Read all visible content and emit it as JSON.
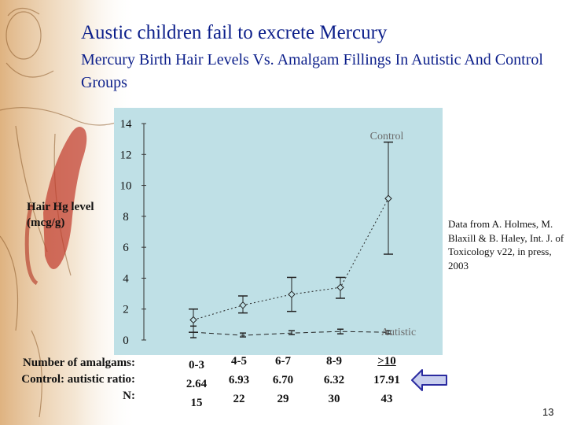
{
  "title": "Austic children fail to excrete Mercury",
  "subtitle": "Mercury Birth Hair Levels Vs. Amalgam Fillings In Autistic And Control Groups",
  "source_note": "Data from A. Holmes, M. Blaxill & B. Haley, Int. J. of Toxicology v22, in press, 2003",
  "page_number": "13",
  "row_labels": [
    "Number of amalgams:",
    "Control: autistic ratio:",
    "N:"
  ],
  "columns": [
    {
      "amalgams": "0-3",
      "ratio": "2.64",
      "n": "15"
    },
    {
      "amalgams": "4-5",
      "ratio": "6.93",
      "n": "22"
    },
    {
      "amalgams": "6-7",
      "ratio": "6.70",
      "n": "29"
    },
    {
      "amalgams": "8-9",
      "ratio": "6.32",
      "n": "30"
    },
    {
      "amalgams": ">10",
      "ratio": "17.91",
      "n": "43"
    }
  ],
  "colors": {
    "title": "#0b1e8a",
    "plot_bg": "#bfe0e6",
    "series_label": "#6b6b6b",
    "arrow_fill": "#c9cfee",
    "arrow_stroke": "#2b2ba0"
  },
  "chart_data": {
    "type": "line",
    "ylabel": "Hair Hg level (mcg/g)",
    "xlabel": "",
    "ylim": [
      0,
      14
    ],
    "yticks": [
      "0",
      "2",
      "4",
      "6",
      "8",
      "10",
      "12",
      "14"
    ],
    "categories": [
      "0-3",
      "4-5",
      "6-7",
      "8-9",
      ">10"
    ],
    "grid": false,
    "series": [
      {
        "name": "Control",
        "line_style": "dotted",
        "marker": "diamond",
        "values": [
          1.3,
          2.25,
          2.95,
          3.4,
          9.15
        ],
        "err_low": [
          0.5,
          1.75,
          1.85,
          2.7,
          5.55
        ],
        "err_high": [
          2.0,
          2.85,
          4.05,
          4.05,
          12.8
        ]
      },
      {
        "name": "Autistic",
        "line_style": "dashed",
        "values": [
          0.5,
          0.3,
          0.45,
          0.55,
          0.5
        ],
        "err_low": [
          0.15,
          0.2,
          0.35,
          0.4,
          0.4
        ],
        "err_high": [
          0.9,
          0.45,
          0.6,
          0.7,
          0.6
        ]
      }
    ]
  }
}
